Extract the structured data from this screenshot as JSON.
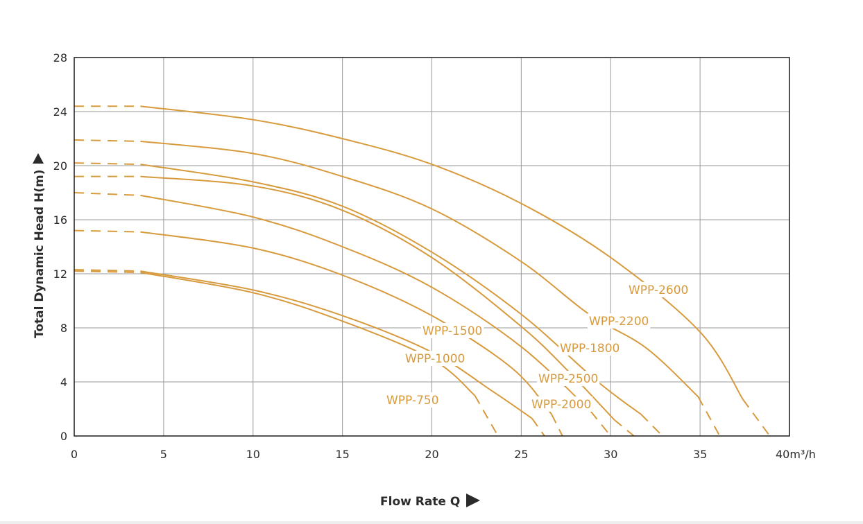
{
  "chart_data": {
    "type": "line",
    "title": "",
    "xlabel": "Flow Rate Q",
    "x_unit": "m³/h",
    "ylabel": "Total Dynamic Head H(m)",
    "xlim": [
      0,
      40
    ],
    "ylim": [
      0,
      28
    ],
    "x_ticks": [
      "0",
      "5",
      "10",
      "15",
      "20",
      "25",
      "30",
      "35",
      "40"
    ],
    "y_ticks": [
      "0",
      "4",
      "8",
      "12",
      "16",
      "20",
      "24",
      "28"
    ],
    "grid": true,
    "line_color": "#d79a3c",
    "series": [
      {
        "name": "WPP-2600",
        "x": [
          0,
          3.7,
          10,
          15,
          20,
          25,
          30,
          35,
          37.4,
          38.9
        ],
        "y": [
          24.4,
          24.4,
          23.4,
          22.0,
          20.1,
          17.2,
          13.2,
          7.7,
          2.7,
          0
        ]
      },
      {
        "name": "WPP-2200",
        "x": [
          0,
          3.7,
          10,
          15,
          20,
          25,
          28.8,
          32.0,
          34.9,
          36.1
        ],
        "y": [
          21.9,
          21.8,
          20.9,
          19.2,
          16.8,
          12.9,
          9.0,
          6.5,
          2.9,
          0
        ]
      },
      {
        "name": "WPP-1800",
        "x": [
          0,
          3.7,
          10,
          15,
          20,
          25,
          29.2,
          31.7,
          32.9
        ],
        "y": [
          20.2,
          20.1,
          18.8,
          17.0,
          13.6,
          9.0,
          4.1,
          1.6,
          0
        ]
      },
      {
        "name": "WPP-2500",
        "x": [
          0,
          3.7,
          10,
          15,
          20,
          25,
          27.7,
          30.2,
          31.3
        ],
        "y": [
          19.2,
          19.2,
          18.5,
          16.7,
          13.2,
          8.1,
          4.7,
          1.2,
          0
        ]
      },
      {
        "name": "WPP-2000",
        "x": [
          0,
          3.7,
          10,
          15,
          20,
          25,
          28.9,
          30.0
        ],
        "y": [
          18.0,
          17.8,
          16.2,
          14.0,
          11.0,
          6.6,
          1.8,
          0
        ]
      },
      {
        "name": "WPP-1500",
        "x": [
          0,
          3.7,
          10,
          15,
          20,
          24.5,
          26.7,
          27.3
        ],
        "y": [
          15.2,
          15.1,
          13.9,
          11.9,
          8.9,
          5.0,
          1.6,
          0
        ]
      },
      {
        "name": "WPP-1000",
        "x": [
          0,
          3.7,
          10,
          15,
          20,
          23.4,
          25.6,
          26.3
        ],
        "y": [
          12.3,
          12.2,
          10.8,
          8.9,
          6.2,
          3.3,
          1.3,
          0
        ]
      },
      {
        "name": "WPP-750",
        "x": [
          0,
          3.7,
          10,
          15,
          20,
          22.4,
          23.7
        ],
        "y": [
          12.2,
          12.1,
          10.6,
          8.5,
          5.7,
          3.0,
          0
        ]
      }
    ],
    "dashed_segments_note": "",
    "series_labels": [
      "WPP-2600",
      "WPP-2200",
      "WPP-1800",
      "WPP-2500",
      "WPP-2000",
      "WPP-1500",
      "WPP-1000",
      "WPP-750"
    ]
  }
}
